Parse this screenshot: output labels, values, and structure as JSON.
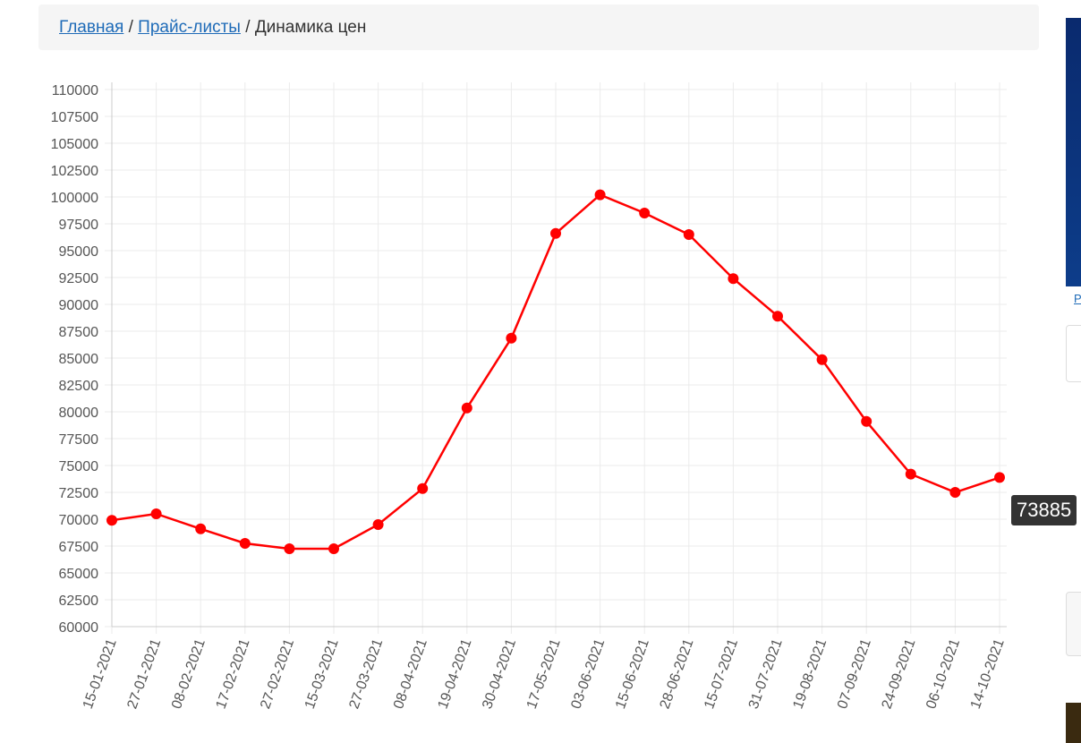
{
  "breadcrumb": {
    "items": [
      "Главная",
      "Прайс-листы",
      "Динамика цен"
    ],
    "separator": "/"
  },
  "sidebar": {
    "link": "Р"
  },
  "chart_data": {
    "type": "line",
    "categories": [
      "15-01-2021",
      "27-01-2021",
      "08-02-2021",
      "17-02-2021",
      "27-02-2021",
      "15-03-2021",
      "27-03-2021",
      "08-04-2021",
      "19-04-2021",
      "30-04-2021",
      "17-05-2021",
      "03-06-2021",
      "15-06-2021",
      "28-06-2021",
      "15-07-2021",
      "31-07-2021",
      "19-08-2021",
      "07-09-2021",
      "24-09-2021",
      "06-10-2021",
      "14-10-2021"
    ],
    "values": [
      69900,
      70500,
      69100,
      67750,
      67250,
      67250,
      69500,
      72850,
      80350,
      86850,
      96600,
      100200,
      98500,
      96500,
      92400,
      88900,
      84850,
      79100,
      74200,
      72500,
      73885
    ],
    "color": "#ff0000",
    "ylim": [
      60000,
      110000
    ],
    "yticks": [
      60000,
      62500,
      65000,
      67500,
      70000,
      72500,
      75000,
      77500,
      80000,
      82500,
      85000,
      87500,
      90000,
      92500,
      95000,
      97500,
      100000,
      102500,
      105000,
      107500,
      110000
    ],
    "grid": true
  }
}
